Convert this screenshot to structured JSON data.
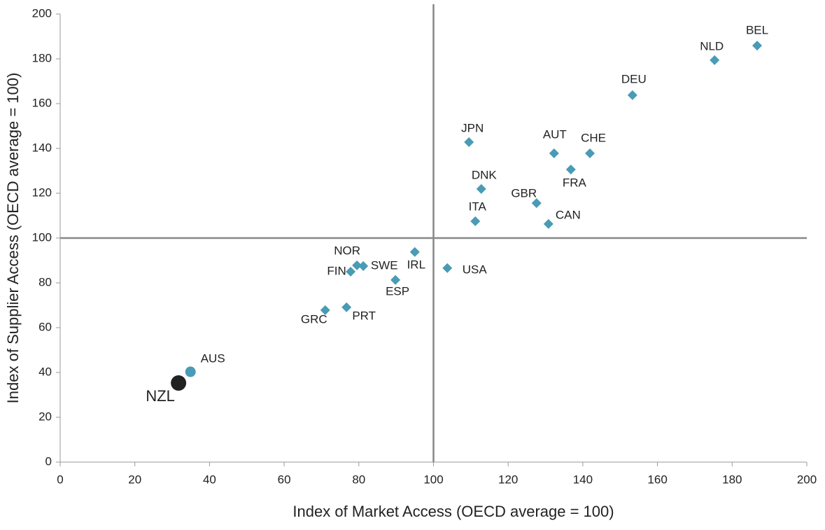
{
  "chart_data": {
    "type": "scatter",
    "x_label": "Index of Market Access (OECD average = 100)",
    "y_label": "Index of Supplier Access (OECD average = 100)",
    "xlim": [
      0,
      200
    ],
    "ylim": [
      0,
      200
    ],
    "xticks": [
      0,
      20,
      40,
      60,
      80,
      100,
      120,
      140,
      160,
      180,
      200
    ],
    "yticks": [
      0,
      20,
      40,
      60,
      80,
      100,
      120,
      140,
      160,
      180,
      200
    ],
    "vline": 100,
    "hline": 100,
    "series": [
      {
        "marker": "diamond",
        "color": "#4a9bb5",
        "labels": [
          "BEL",
          "NLD",
          "DEU",
          "JPN",
          "AUT",
          "CHE",
          "FRA",
          "DNK",
          "GBR",
          "ITA",
          "CAN",
          "IRL",
          "USA",
          "NOR",
          "SWE",
          "FIN",
          "ESP",
          "PRT",
          "GRC"
        ],
        "x": [
          186.7,
          175.3,
          153.3,
          109.5,
          132.3,
          141.9,
          136.8,
          112.8,
          127.6,
          111.2,
          130.8,
          95.0,
          103.7,
          79.5,
          81.2,
          77.8,
          89.8,
          76.7,
          71.0
        ],
        "y": [
          185.9,
          179.4,
          163.8,
          142.8,
          137.8,
          137.8,
          130.6,
          121.9,
          115.6,
          107.5,
          106.3,
          93.8,
          86.6,
          87.8,
          87.5,
          85.0,
          81.3,
          69.1,
          67.8
        ]
      },
      {
        "marker": "circle",
        "color": "#4a9bb5",
        "labels": [
          "AUS"
        ],
        "x": [
          34.9
        ],
        "y": [
          40.3
        ]
      },
      {
        "marker": "big-circle",
        "color": "#222222",
        "labels": [
          "NZL"
        ],
        "x": [
          31.7
        ],
        "y": [
          35.3
        ]
      }
    ]
  }
}
